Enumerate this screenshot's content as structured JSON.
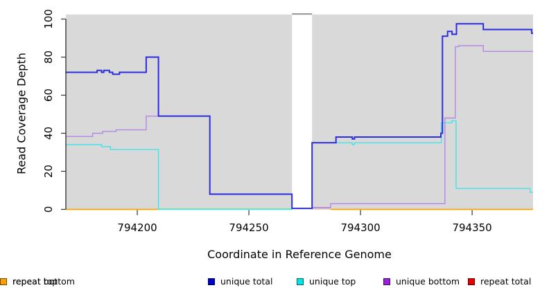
{
  "chart_data": {
    "type": "line",
    "step": true,
    "title": "",
    "xlabel": "Coordinate in Reference Genome",
    "ylabel": "Read Coverage Depth",
    "xlim": [
      794168,
      794377.3
    ],
    "ylim": [
      0,
      100
    ],
    "x_ticks": [
      794200,
      794250,
      794300,
      794350
    ],
    "y_ticks": [
      0,
      20,
      40,
      60,
      80,
      100
    ],
    "grid": false,
    "legend_position": "bottom",
    "gap_region": {
      "x0": 794269.3,
      "x1": 794278.3,
      "note": "white vertical band, no data"
    },
    "series": [
      {
        "name": "unique total",
        "color": "#0000cc",
        "line_color": "#2b2be0",
        "width": 2,
        "segments": [
          [
            [
              794168,
              72
            ],
            [
              794182,
              73
            ],
            [
              794184,
              72
            ],
            [
              794185,
              73
            ],
            [
              794187.5,
              72
            ],
            [
              794189,
              71
            ],
            [
              794192,
              72
            ],
            [
              794204,
              80
            ],
            [
              794209.5,
              49
            ],
            [
              794232.5,
              8
            ],
            [
              794269.3,
              0.5
            ],
            [
              794278.3,
              35
            ],
            [
              794289,
              38
            ],
            [
              794296.3,
              37
            ],
            [
              794297.3,
              38
            ],
            [
              794336,
              40
            ],
            [
              794336.7,
              91
            ],
            [
              794339,
              93.5
            ],
            [
              794341,
              92
            ],
            [
              794343,
              97.5
            ],
            [
              794355,
              94.5
            ],
            [
              794376.7,
              92.5
            ],
            [
              794377.3,
              92.5
            ]
          ]
        ]
      },
      {
        "name": "unique top",
        "color": "#00e6e6",
        "line_color": "#40e4ea",
        "width": 1.4,
        "segments": [
          [
            [
              794168,
              34
            ],
            [
              794184,
              33
            ],
            [
              794188,
              31.5
            ],
            [
              794209.5,
              0
            ],
            [
              794269.3,
              0
            ]
          ],
          [
            [
              794278.3,
              35
            ],
            [
              794296.3,
              34
            ],
            [
              794297.3,
              35
            ],
            [
              794336.2,
              45.5
            ],
            [
              794341,
              46.5
            ],
            [
              794342.8,
              11
            ],
            [
              794376,
              9
            ],
            [
              794377.3,
              9
            ]
          ]
        ]
      },
      {
        "name": "unique bottom",
        "color": "#9d1fd6",
        "line_color": "#b287e6",
        "width": 1.4,
        "segments": [
          [
            [
              794168,
              38.3
            ],
            [
              794180,
              40
            ],
            [
              794184.5,
              41
            ],
            [
              794190.5,
              41.8
            ],
            [
              794204,
              49
            ],
            [
              794232.5,
              8
            ],
            [
              794269.3,
              0.5
            ],
            [
              794278.3,
              1
            ],
            [
              794286.6,
              3
            ],
            [
              794337.8,
              48
            ],
            [
              794342.5,
              85.5
            ],
            [
              794344,
              86
            ],
            [
              794355,
              83
            ],
            [
              794377.3,
              83
            ]
          ]
        ]
      },
      {
        "name": "repeat total",
        "color": "#e60000",
        "line_color": "#e8808d",
        "width": 1.4,
        "segments": [
          [
            [
              794278.3,
              0.7
            ],
            [
              794286.6,
              0.7
            ]
          ]
        ]
      },
      {
        "name": "repeat top",
        "color": "#ffff00",
        "line_color": "#98e698",
        "width": 1.4,
        "segments": [
          [
            [
              794209.5,
              0.3
            ],
            [
              794269.3,
              0.3
            ]
          ]
        ]
      },
      {
        "name": "repeat bottom",
        "color": "#ffa000",
        "line_color": "#ffa500",
        "width": 1.7,
        "segments": [
          [
            [
              794168,
              0
            ],
            [
              794209.5,
              0
            ]
          ],
          [
            [
              794286.6,
              0
            ],
            [
              794377.3,
              0
            ]
          ]
        ]
      }
    ]
  },
  "colors": {
    "plot_bg": "#d9d9d9",
    "gap_fill": "#ffffff",
    "gap_cap": "#8c8c8c",
    "axis": "#1a1a1a",
    "tick": "#333333"
  }
}
